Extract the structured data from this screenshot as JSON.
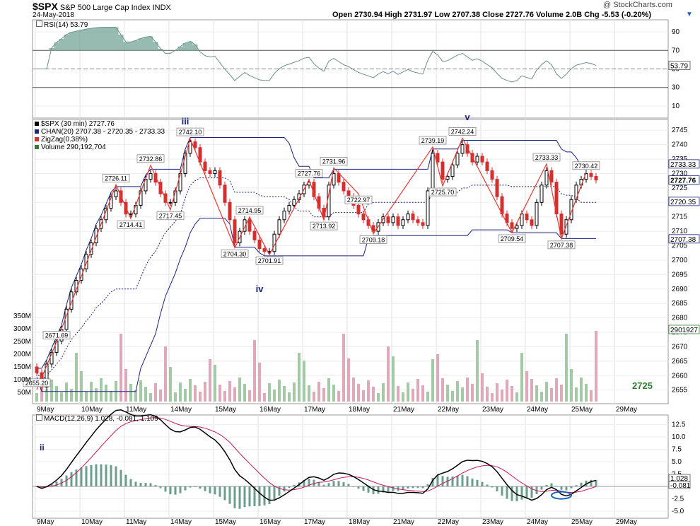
{
  "header": {
    "symbol": "$SPX",
    "name": "S&P 500 Large Cap Index",
    "exchange": "INDX",
    "date": "24-May-2018",
    "watermark": "@ StockCharts.com",
    "ohlc_text": "Open 2730.94  High 2731.97  Low 2707.38  Close 2727.76  Volume 2.0B  Chg -5.53 (-0.20%)",
    "down_arrow": "▼"
  },
  "rsi": {
    "label": "RSI(14) 53.79",
    "current": 53.79,
    "levels": [
      90,
      70,
      50,
      30,
      10
    ],
    "overbought": 70,
    "oversold": 30,
    "color": "#6b8e8e"
  },
  "price": {
    "legend": [
      {
        "text": "$SPX (30 min) 2727.76",
        "color": "#000000"
      },
      {
        "text": "CHAN(20) 2707.38 - 2720.35 - 2733.33",
        "color": "#1a237e"
      },
      {
        "text": "ZigZag(0.38%)",
        "color": "#d32f2f"
      },
      {
        "text": "Volume 290,192,704",
        "color": "#2e7d32"
      }
    ],
    "ylim": [
      2651,
      2748
    ],
    "yticks": [
      2655,
      2660,
      2665,
      2670,
      2675,
      2680,
      2685,
      2690,
      2695,
      2700,
      2705,
      2710,
      2715,
      2720,
      2725,
      2730,
      2735,
      2740,
      2745
    ],
    "right_labels": [
      {
        "value": 2733.33,
        "text": "2733.33"
      },
      {
        "value": 2727.76,
        "text": "2727.76",
        "bold": true
      },
      {
        "value": 2720.35,
        "text": "2720.35"
      },
      {
        "value": 2707.38,
        "text": "2707.38"
      }
    ],
    "volume_right_label": "2901927",
    "volume_ticks": [
      "350M",
      "300M",
      "250M",
      "200M",
      "150M",
      "100M",
      "50M"
    ],
    "target_label": "2725",
    "zigzag_labels": [
      {
        "i": 0,
        "v": 2655.2,
        "t": "2655.20"
      },
      {
        "i": 4,
        "v": 2671.69,
        "t": "2671.69"
      },
      {
        "i": 16,
        "v": 2726.11,
        "t": "2726.11"
      },
      {
        "i": 19,
        "v": 2714.41,
        "t": "2714.41"
      },
      {
        "i": 23,
        "v": 2732.86,
        "t": "2732.86"
      },
      {
        "i": 27,
        "v": 2717.45,
        "t": "2717.45"
      },
      {
        "i": 31,
        "v": 2742.1,
        "t": "2742.10"
      },
      {
        "i": 40,
        "v": 2704.3,
        "t": "2704.30"
      },
      {
        "i": 43,
        "v": 2714.95,
        "t": "2714.95"
      },
      {
        "i": 47,
        "v": 2701.91,
        "t": "2701.91"
      },
      {
        "i": 55,
        "v": 2727.76,
        "t": "2727.76"
      },
      {
        "i": 58,
        "v": 2713.92,
        "t": "2713.92"
      },
      {
        "i": 60,
        "v": 2731.96,
        "t": "2731.96"
      },
      {
        "i": 65,
        "v": 2722.97,
        "t": "2722.97"
      },
      {
        "i": 68,
        "v": 2709.18,
        "t": "2709.18"
      },
      {
        "i": 80,
        "v": 2739.19,
        "t": "2739.19"
      },
      {
        "i": 82,
        "v": 2725.7,
        "t": "2725.70"
      },
      {
        "i": 86,
        "v": 2742.24,
        "t": "2742.24"
      },
      {
        "i": 96,
        "v": 2709.54,
        "t": "2709.54"
      },
      {
        "i": 103,
        "v": 2733.33,
        "t": "2733.33"
      },
      {
        "i": 106,
        "v": 2707.38,
        "t": "2707.38"
      },
      {
        "i": 111,
        "v": 2730.42,
        "t": "2730.42"
      }
    ],
    "wave_labels": [
      {
        "i": 30,
        "v": 2747,
        "t": "iii"
      },
      {
        "i": 45,
        "v": 2689,
        "t": "iv"
      },
      {
        "i": 87,
        "v": 2748.5,
        "t": "v"
      }
    ]
  },
  "macd": {
    "label": "MACD(12,26,9) 1.028, -0.081, 1.109",
    "macd": 1.028,
    "signal": -0.081,
    "hist": 1.109,
    "ylim": [
      -6,
      14
    ],
    "yticks": [
      12.5,
      10.0,
      7.5,
      5.0,
      2.5,
      -2.5,
      -5.0
    ],
    "ytick_labels": [
      "12.5",
      "10.0",
      "7.5",
      "5.0",
      "2.5",
      "-2.5",
      "-5.0"
    ],
    "right_labels": [
      "1.028",
      "-0.081"
    ],
    "wave_label": "ii"
  },
  "x_axis": {
    "labels": [
      "9May",
      "10May",
      "11May",
      "14May",
      "15May",
      "16May",
      "17May",
      "18May",
      "21May",
      "22May",
      "23May",
      "24May",
      "25May",
      "29May"
    ],
    "label_bar_index": [
      0,
      9,
      18,
      27,
      36,
      45,
      54,
      63,
      72,
      81,
      90,
      99,
      108,
      117
    ]
  },
  "chart_data": {
    "type": "candlestick",
    "title": "S&P 500 Large Cap Index (30 min)",
    "period_labels": [
      "9May",
      "10May",
      "11May",
      "14May",
      "15May",
      "16May",
      "17May",
      "18May",
      "21May",
      "22May",
      "23May",
      "24May"
    ],
    "zigzag_pivots": [
      2655.2,
      2671.69,
      2726.11,
      2714.41,
      2732.86,
      2717.45,
      2742.1,
      2704.3,
      2714.95,
      2701.91,
      2727.76,
      2713.92,
      2731.96,
      2722.97,
      2709.18,
      2739.19,
      2725.7,
      2742.24,
      2709.54,
      2733.33,
      2707.38,
      2730.42
    ],
    "price_closes": [
      2661,
      2656,
      2664,
      2668,
      2672,
      2676,
      2683,
      2689,
      2693,
      2697,
      2702,
      2706,
      2711,
      2714,
      2718,
      2722,
      2724,
      2720,
      2716,
      2716,
      2719,
      2724,
      2728,
      2730,
      2727,
      2723,
      2720,
      2720,
      2724,
      2730,
      2737,
      2741,
      2739,
      2734,
      2731,
      2730,
      2731,
      2726,
      2720,
      2714,
      2706,
      2710,
      2714,
      2710,
      2707,
      2704,
      2703,
      2703,
      2709,
      2714,
      2717,
      2719,
      2721,
      2723,
      2726,
      2727,
      2722,
      2718,
      2715,
      2726,
      2730,
      2727,
      2724,
      2722,
      2719,
      2716,
      2714,
      2712,
      2710,
      2713,
      2715,
      2713,
      2715,
      2712,
      2714,
      2716,
      2714,
      2713,
      2712,
      2724,
      2737,
      2734,
      2728,
      2729,
      2733,
      2737,
      2740,
      2737,
      2734,
      2736,
      2734,
      2731,
      2728,
      2722,
      2716,
      2713,
      2711,
      2712,
      2716,
      2714,
      2712,
      2720,
      2726,
      2731,
      2727,
      2716,
      2709,
      2714,
      2721,
      2726,
      2728,
      2730,
      2729,
      2727.76
    ],
    "channel": {
      "lower": 2707.38,
      "middle": 2720.35,
      "upper": 2733.33
    },
    "volume_last": 290192704,
    "rsi_last": 53.79,
    "macd_last": {
      "macd": 1.028,
      "signal": -0.081,
      "histogram": 1.109
    }
  }
}
